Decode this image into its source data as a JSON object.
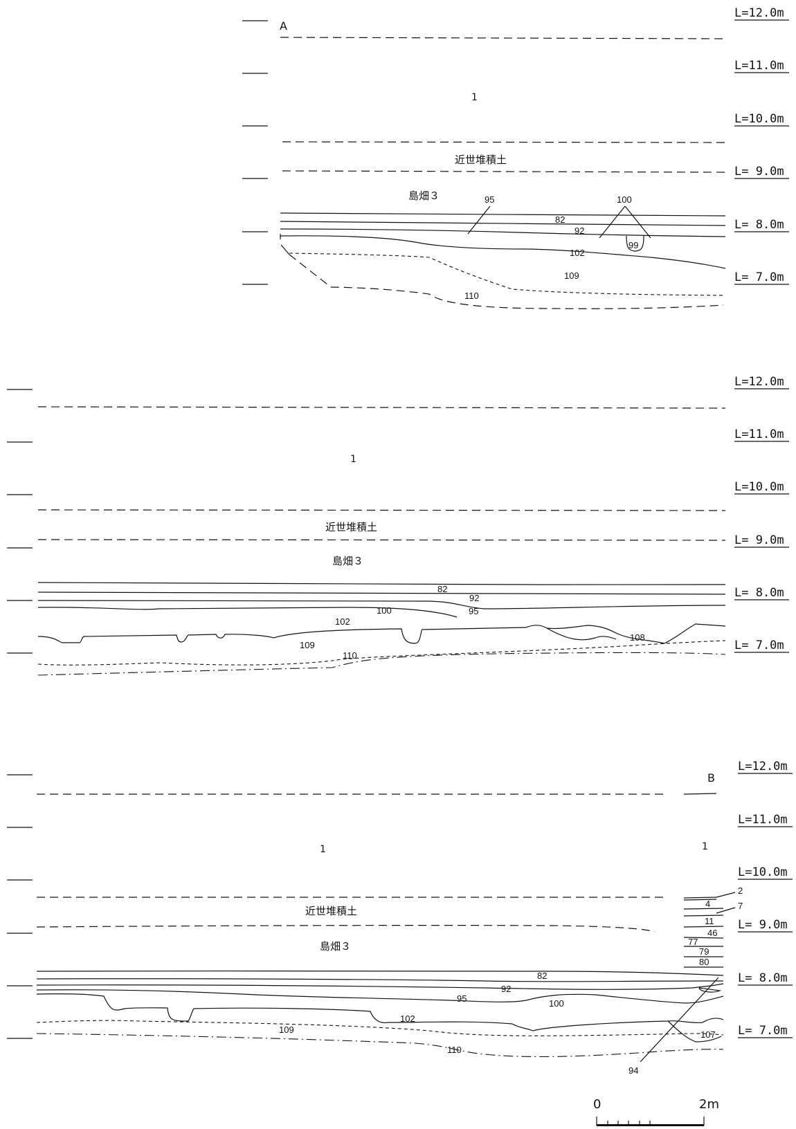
{
  "levels": [
    "L=12.0m",
    "L=11.0m",
    "L=10.0m",
    "L= 9.0m",
    "L= 8.0m",
    "L= 7.0m"
  ],
  "points": {
    "start": "A",
    "end": "B"
  },
  "strata": {
    "modern": "1",
    "edo_deposit": "近世堆積土",
    "field": "島畑３"
  },
  "layer_numbers": {
    "l2": "2",
    "l4": "4",
    "l7": "7",
    "l11": "11",
    "l46": "46",
    "l77": "77",
    "l79": "79",
    "l80": "80",
    "l82": "82",
    "l92": "92",
    "l94": "94",
    "l95": "95",
    "l99": "99",
    "l100": "100",
    "l102": "102",
    "l107": "107",
    "l108": "108",
    "l109": "109",
    "l110": "110"
  },
  "scale_bar": {
    "start_label": "0",
    "end_label": "2m",
    "divisions": 5
  }
}
